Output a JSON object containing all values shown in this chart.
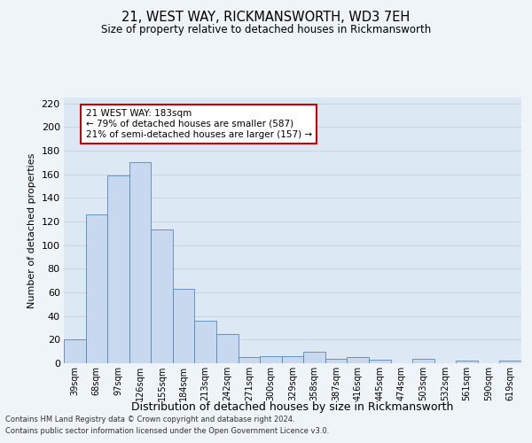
{
  "title": "21, WEST WAY, RICKMANSWORTH, WD3 7EH",
  "subtitle": "Size of property relative to detached houses in Rickmansworth",
  "xlabel": "Distribution of detached houses by size in Rickmansworth",
  "ylabel": "Number of detached properties",
  "categories": [
    "39sqm",
    "68sqm",
    "97sqm",
    "126sqm",
    "155sqm",
    "184sqm",
    "213sqm",
    "242sqm",
    "271sqm",
    "300sqm",
    "329sqm",
    "358sqm",
    "387sqm",
    "416sqm",
    "445sqm",
    "474sqm",
    "503sqm",
    "532sqm",
    "561sqm",
    "590sqm",
    "619sqm"
  ],
  "values": [
    20,
    126,
    159,
    170,
    113,
    63,
    36,
    25,
    5,
    6,
    6,
    10,
    4,
    5,
    3,
    0,
    4,
    0,
    2,
    0,
    2
  ],
  "bar_color": "#c8d8ee",
  "bar_edge_color": "#5588bb",
  "annotation_line1": "21 WEST WAY: 183sqm",
  "annotation_line2": "← 79% of detached houses are smaller (587)",
  "annotation_line3": "21% of semi-detached houses are larger (157) →",
  "annotation_box_color": "#ffffff",
  "annotation_box_edge_color": "#cc0000",
  "ylim": [
    0,
    225
  ],
  "yticks": [
    0,
    20,
    40,
    60,
    80,
    100,
    120,
    140,
    160,
    180,
    200,
    220
  ],
  "grid_color": "#c8d0de",
  "background_color": "#dce8f4",
  "fig_background_color": "#eef4f8",
  "footer_line1": "Contains HM Land Registry data © Crown copyright and database right 2024.",
  "footer_line2": "Contains public sector information licensed under the Open Government Licence v3.0."
}
